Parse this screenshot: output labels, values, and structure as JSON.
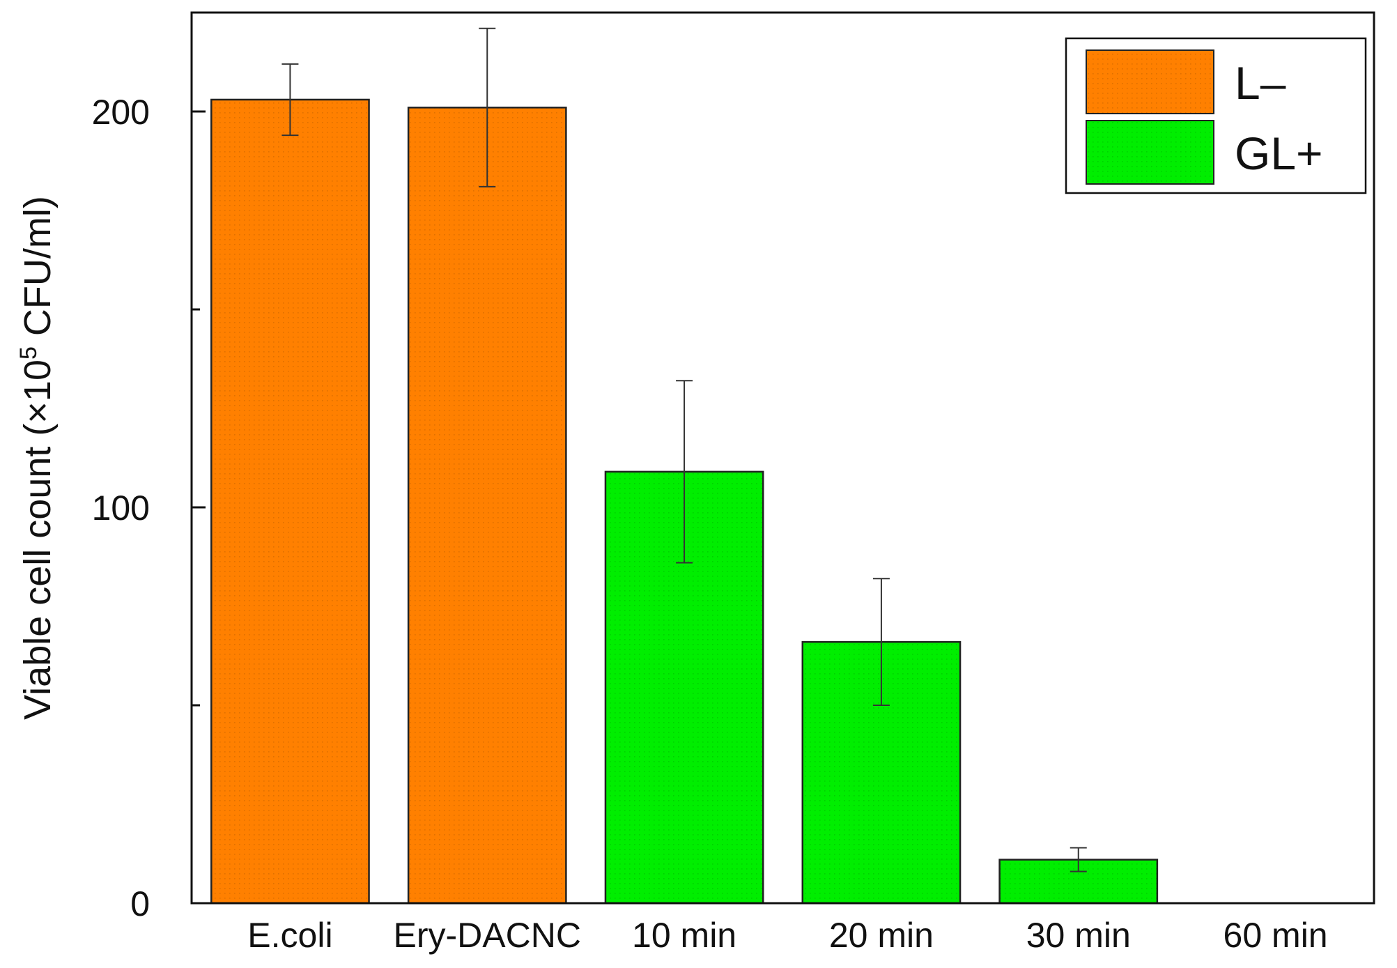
{
  "chart_data": {
    "type": "bar",
    "title": "",
    "xlabel": "",
    "ylabel": {
      "prefix": "Viable cell count (×10",
      "superscript": "5",
      "suffix": " CFU/ml)"
    },
    "ylim": [
      0,
      225
    ],
    "yticks": [
      0,
      100,
      200
    ],
    "yticks_minor": [
      50,
      150
    ],
    "categories": [
      "E.coli",
      "Ery-DACNC",
      "10 min",
      "20 min",
      "30 min",
      "60 min"
    ],
    "values": [
      203,
      201,
      109,
      66,
      11,
      0
    ],
    "errors": [
      9,
      20,
      23,
      16,
      3,
      0
    ],
    "groups": [
      "L–",
      "L–",
      "GL+",
      "GL+",
      "GL+",
      "GL+"
    ],
    "series": [
      {
        "name": "L–",
        "color": "#ff8000"
      },
      {
        "name": "GL+",
        "color": "#00ee00"
      }
    ],
    "legend_position": "top-right",
    "grid": false
  }
}
